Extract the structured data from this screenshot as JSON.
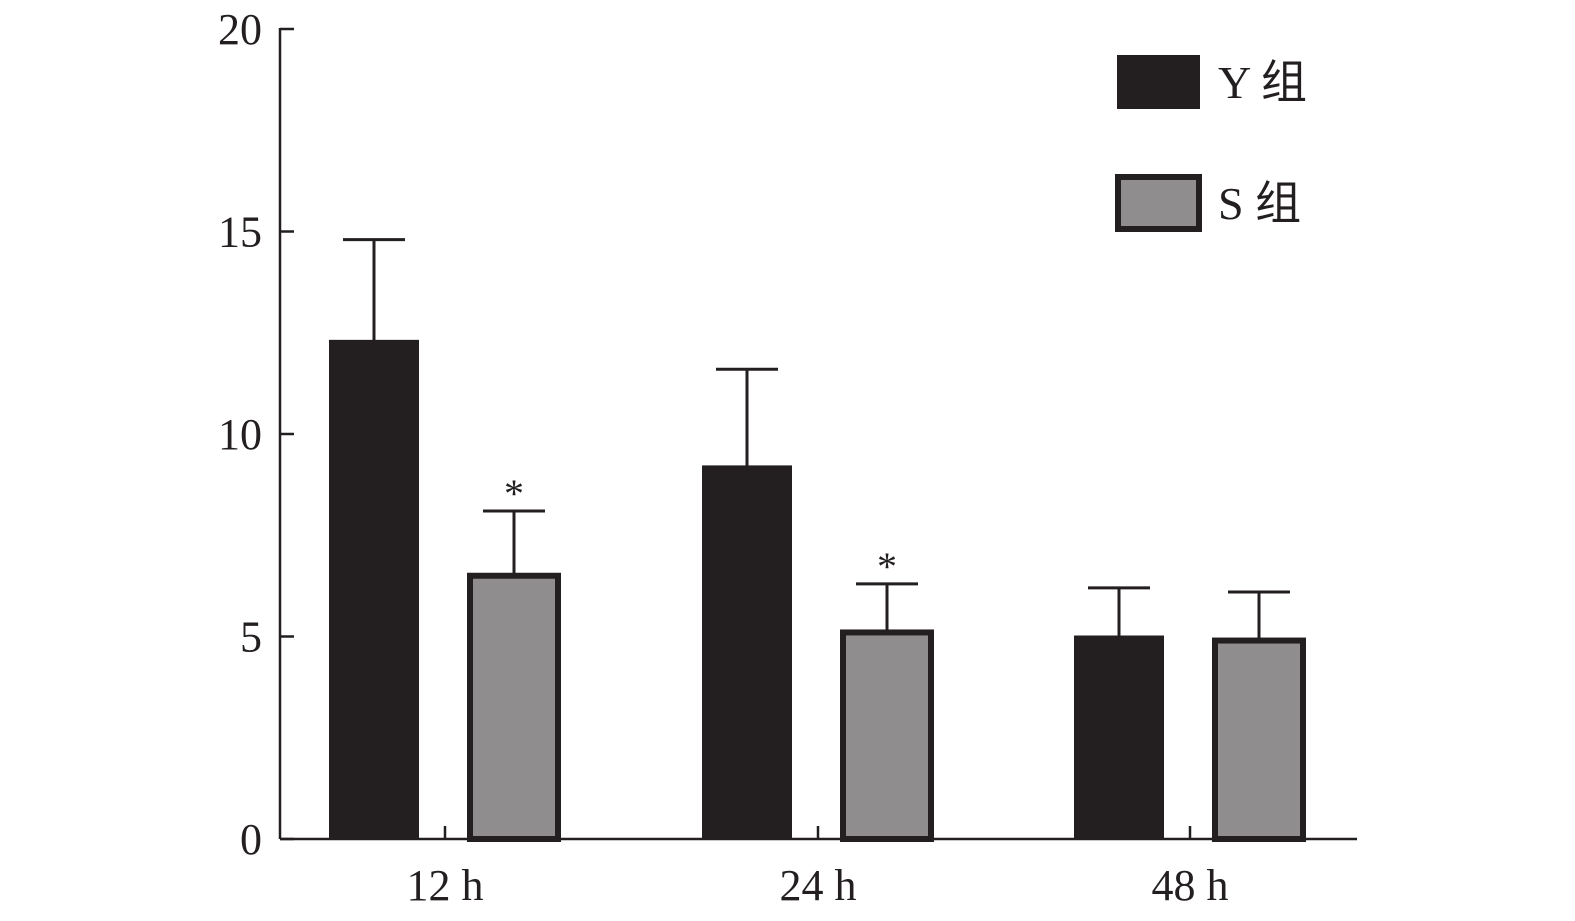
{
  "chart_data": {
    "type": "bar",
    "title": "",
    "xlabel": "",
    "ylabel": "",
    "ylim": [
      0,
      20
    ],
    "yticks": [
      "0",
      "5",
      "10",
      "15",
      "20"
    ],
    "categories": [
      "12 h",
      "24 h",
      "48 h"
    ],
    "grid": false,
    "legend_position": "top-right",
    "series": [
      {
        "name": "Y 组",
        "color": "#231f20",
        "values": [
          12.3,
          9.2,
          5.0
        ],
        "error_upper": [
          14.8,
          11.6,
          6.2
        ],
        "annotations": [
          "",
          "",
          ""
        ]
      },
      {
        "name": "S 组",
        "color": "#8f8d8e",
        "values": [
          6.5,
          5.1,
          4.9
        ],
        "error_upper": [
          8.1,
          6.3,
          6.1
        ],
        "annotations": [
          "*",
          "*",
          ""
        ]
      }
    ]
  }
}
